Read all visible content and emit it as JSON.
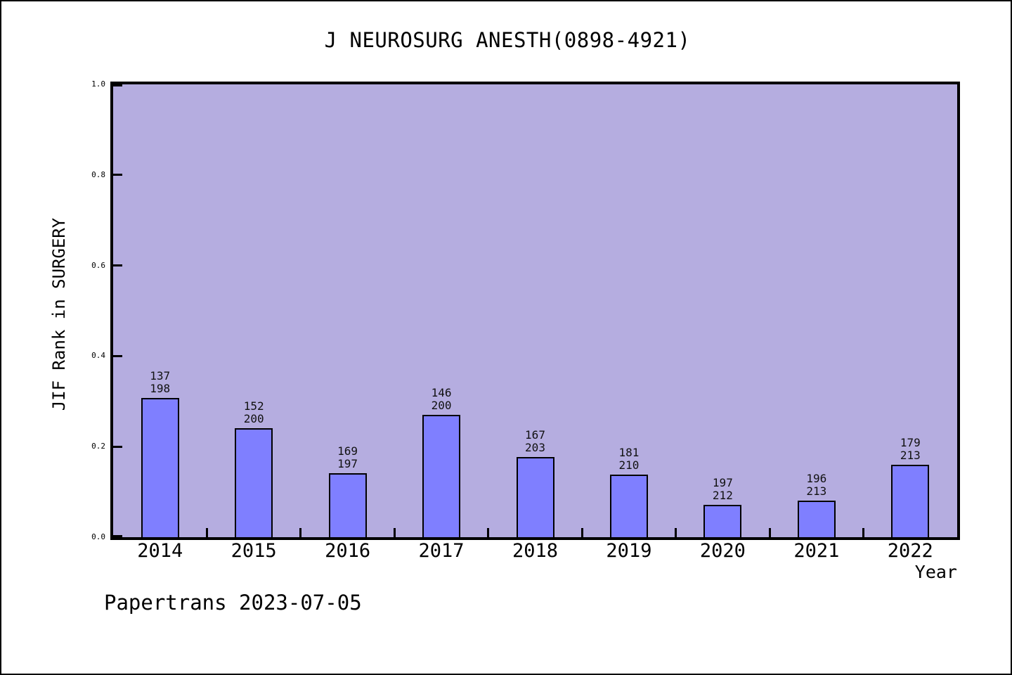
{
  "window": {
    "title": "J NEUROSURG ANESTH(0898-4921)"
  },
  "footer": {
    "watermark": "Papertrans 2023-07-05"
  },
  "colors": {
    "page_bg": "#ffffff",
    "plot_bg": "#b5ade0",
    "bar_fill": "#7f7fff",
    "bar_border": "#000000",
    "axis": "#000000",
    "text": "#000000"
  },
  "chart_data": {
    "type": "bar",
    "title": "J NEUROSURG ANESTH(0898-4921)",
    "xlabel": "Year",
    "ylabel": "JIF Rank in SURGERY",
    "ylim": [
      0.0,
      1.0
    ],
    "ytick_labels": [
      "0.0",
      "0.2",
      "0.4",
      "0.6",
      "0.8",
      "1.0"
    ],
    "grid": false,
    "legend_position": "none",
    "annotation": "Papertrans 2023-07-05",
    "bar_label_note": "two-line label above each bar: rank over category size",
    "categories": [
      "2014",
      "2015",
      "2016",
      "2017",
      "2018",
      "2019",
      "2020",
      "2021",
      "2022"
    ],
    "bars": [
      {
        "year": "2014",
        "rank": 137,
        "total": 198,
        "value": 0.308
      },
      {
        "year": "2015",
        "rank": 152,
        "total": 200,
        "value": 0.24
      },
      {
        "year": "2016",
        "rank": 169,
        "total": 197,
        "value": 0.142
      },
      {
        "year": "2017",
        "rank": 146,
        "total": 200,
        "value": 0.27
      },
      {
        "year": "2018",
        "rank": 167,
        "total": 203,
        "value": 0.177
      },
      {
        "year": "2019",
        "rank": 181,
        "total": 210,
        "value": 0.138
      },
      {
        "year": "2020",
        "rank": 197,
        "total": 212,
        "value": 0.071
      },
      {
        "year": "2021",
        "rank": 196,
        "total": 213,
        "value": 0.08
      },
      {
        "year": "2022",
        "rank": 179,
        "total": 213,
        "value": 0.16
      }
    ]
  }
}
